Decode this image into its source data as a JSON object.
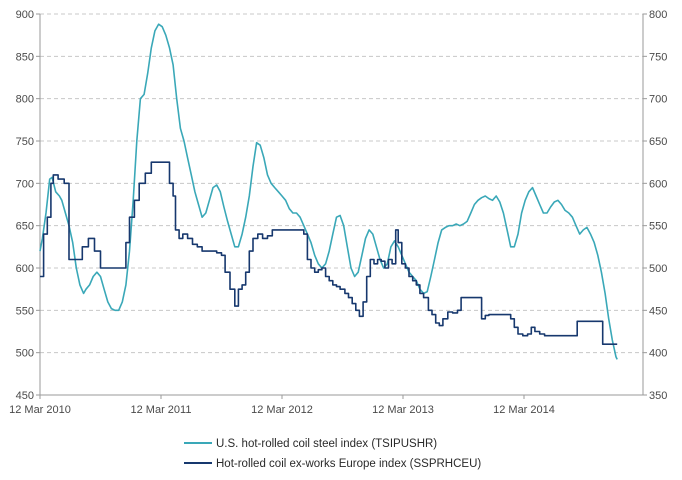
{
  "chart_data": {
    "type": "line",
    "title": "",
    "xlabel": "",
    "ylabel": "",
    "grid": true,
    "legend_position": "bottom",
    "x_range": [
      0,
      5.0
    ],
    "x_tick_values": [
      0,
      1,
      2,
      3,
      4
    ],
    "x_tick_labels": [
      "12 Mar 2010",
      "12 Mar 2011",
      "12 Mar 2012",
      "12 Mar 2013",
      "12 Mar 2014"
    ],
    "left_axis": {
      "ylim": [
        450,
        900
      ],
      "ticks": [
        450,
        500,
        550,
        600,
        650,
        700,
        750,
        800,
        850,
        900
      ]
    },
    "right_axis": {
      "ylim": [
        350,
        800
      ],
      "ticks": [
        350,
        400,
        450,
        500,
        550,
        600,
        650,
        700,
        750,
        800
      ]
    },
    "series": [
      {
        "name": "U.S. hot-rolled coil steel index (TSIPUSHR)",
        "axis": "left",
        "color": "#3aa8b8",
        "step": false,
        "points": [
          [
            0.0,
            620
          ],
          [
            0.02,
            635
          ],
          [
            0.05,
            665
          ],
          [
            0.08,
            705
          ],
          [
            0.1,
            707
          ],
          [
            0.13,
            690
          ],
          [
            0.16,
            685
          ],
          [
            0.18,
            680
          ],
          [
            0.21,
            665
          ],
          [
            0.24,
            650
          ],
          [
            0.27,
            630
          ],
          [
            0.3,
            600
          ],
          [
            0.33,
            580
          ],
          [
            0.36,
            570
          ],
          [
            0.38,
            575
          ],
          [
            0.41,
            580
          ],
          [
            0.44,
            590
          ],
          [
            0.47,
            595
          ],
          [
            0.5,
            590
          ],
          [
            0.53,
            575
          ],
          [
            0.56,
            560
          ],
          [
            0.59,
            552
          ],
          [
            0.62,
            550
          ],
          [
            0.65,
            550
          ],
          [
            0.68,
            560
          ],
          [
            0.71,
            580
          ],
          [
            0.74,
            620
          ],
          [
            0.77,
            680
          ],
          [
            0.8,
            750
          ],
          [
            0.83,
            800
          ],
          [
            0.86,
            805
          ],
          [
            0.89,
            830
          ],
          [
            0.92,
            860
          ],
          [
            0.95,
            880
          ],
          [
            0.98,
            888
          ],
          [
            1.01,
            885
          ],
          [
            1.04,
            875
          ],
          [
            1.07,
            860
          ],
          [
            1.1,
            840
          ],
          [
            1.13,
            800
          ],
          [
            1.16,
            765
          ],
          [
            1.19,
            750
          ],
          [
            1.22,
            730
          ],
          [
            1.25,
            710
          ],
          [
            1.28,
            690
          ],
          [
            1.31,
            675
          ],
          [
            1.34,
            660
          ],
          [
            1.37,
            665
          ],
          [
            1.4,
            680
          ],
          [
            1.43,
            695
          ],
          [
            1.46,
            698
          ],
          [
            1.49,
            690
          ],
          [
            1.52,
            672
          ],
          [
            1.55,
            655
          ],
          [
            1.58,
            640
          ],
          [
            1.61,
            625
          ],
          [
            1.64,
            625
          ],
          [
            1.67,
            640
          ],
          [
            1.7,
            660
          ],
          [
            1.73,
            685
          ],
          [
            1.76,
            720
          ],
          [
            1.79,
            748
          ],
          [
            1.82,
            745
          ],
          [
            1.85,
            730
          ],
          [
            1.88,
            710
          ],
          [
            1.91,
            700
          ],
          [
            1.94,
            695
          ],
          [
            1.97,
            690
          ],
          [
            2.0,
            685
          ],
          [
            2.03,
            680
          ],
          [
            2.06,
            670
          ],
          [
            2.09,
            665
          ],
          [
            2.12,
            665
          ],
          [
            2.15,
            660
          ],
          [
            2.18,
            650
          ],
          [
            2.21,
            640
          ],
          [
            2.24,
            630
          ],
          [
            2.27,
            615
          ],
          [
            2.3,
            605
          ],
          [
            2.33,
            600
          ],
          [
            2.36,
            605
          ],
          [
            2.39,
            620
          ],
          [
            2.42,
            640
          ],
          [
            2.45,
            660
          ],
          [
            2.48,
            662
          ],
          [
            2.51,
            650
          ],
          [
            2.54,
            625
          ],
          [
            2.57,
            600
          ],
          [
            2.6,
            590
          ],
          [
            2.63,
            595
          ],
          [
            2.66,
            615
          ],
          [
            2.69,
            635
          ],
          [
            2.72,
            645
          ],
          [
            2.75,
            640
          ],
          [
            2.78,
            625
          ],
          [
            2.81,
            610
          ],
          [
            2.84,
            600
          ],
          [
            2.87,
            605
          ],
          [
            2.9,
            625
          ],
          [
            2.93,
            632
          ],
          [
            2.96,
            625
          ],
          [
            2.99,
            615
          ],
          [
            3.02,
            605
          ],
          [
            3.05,
            595
          ],
          [
            3.08,
            590
          ],
          [
            3.11,
            585
          ],
          [
            3.14,
            575
          ],
          [
            3.17,
            570
          ],
          [
            3.2,
            572
          ],
          [
            3.23,
            590
          ],
          [
            3.26,
            610
          ],
          [
            3.29,
            630
          ],
          [
            3.32,
            645
          ],
          [
            3.35,
            648
          ],
          [
            3.38,
            650
          ],
          [
            3.41,
            650
          ],
          [
            3.44,
            652
          ],
          [
            3.47,
            650
          ],
          [
            3.5,
            652
          ],
          [
            3.53,
            655
          ],
          [
            3.56,
            665
          ],
          [
            3.59,
            675
          ],
          [
            3.62,
            680
          ],
          [
            3.65,
            683
          ],
          [
            3.68,
            685
          ],
          [
            3.71,
            682
          ],
          [
            3.74,
            680
          ],
          [
            3.77,
            685
          ],
          [
            3.8,
            678
          ],
          [
            3.83,
            665
          ],
          [
            3.86,
            645
          ],
          [
            3.89,
            625
          ],
          [
            3.92,
            625
          ],
          [
            3.95,
            640
          ],
          [
            3.98,
            665
          ],
          [
            4.01,
            680
          ],
          [
            4.04,
            690
          ],
          [
            4.07,
            695
          ],
          [
            4.1,
            685
          ],
          [
            4.13,
            675
          ],
          [
            4.16,
            665
          ],
          [
            4.19,
            665
          ],
          [
            4.22,
            672
          ],
          [
            4.25,
            678
          ],
          [
            4.28,
            680
          ],
          [
            4.31,
            675
          ],
          [
            4.34,
            668
          ],
          [
            4.37,
            665
          ],
          [
            4.4,
            660
          ],
          [
            4.43,
            650
          ],
          [
            4.46,
            640
          ],
          [
            4.49,
            645
          ],
          [
            4.52,
            648
          ],
          [
            4.55,
            640
          ],
          [
            4.58,
            630
          ],
          [
            4.61,
            615
          ],
          [
            4.64,
            595
          ],
          [
            4.67,
            570
          ],
          [
            4.7,
            540
          ],
          [
            4.73,
            515
          ],
          [
            4.76,
            495
          ],
          [
            4.77,
            492
          ]
        ]
      },
      {
        "name": "Hot-rolled coil ex-works Europe index (SSPRHCEU)",
        "axis": "right",
        "color": "#17386e",
        "step": true,
        "points": [
          [
            0.0,
            490
          ],
          [
            0.03,
            540
          ],
          [
            0.06,
            560
          ],
          [
            0.09,
            600
          ],
          [
            0.11,
            610
          ],
          [
            0.15,
            605
          ],
          [
            0.2,
            600
          ],
          [
            0.24,
            510
          ],
          [
            0.3,
            510
          ],
          [
            0.35,
            525
          ],
          [
            0.4,
            535
          ],
          [
            0.45,
            520
          ],
          [
            0.5,
            500
          ],
          [
            0.55,
            500
          ],
          [
            0.6,
            500
          ],
          [
            0.64,
            500
          ],
          [
            0.68,
            500
          ],
          [
            0.71,
            530
          ],
          [
            0.74,
            560
          ],
          [
            0.78,
            580
          ],
          [
            0.82,
            600
          ],
          [
            0.87,
            612
          ],
          [
            0.92,
            625
          ],
          [
            1.0,
            625
          ],
          [
            1.04,
            625
          ],
          [
            1.07,
            600
          ],
          [
            1.1,
            585
          ],
          [
            1.12,
            545
          ],
          [
            1.15,
            535
          ],
          [
            1.18,
            540
          ],
          [
            1.22,
            535
          ],
          [
            1.26,
            528
          ],
          [
            1.3,
            525
          ],
          [
            1.34,
            520
          ],
          [
            1.38,
            520
          ],
          [
            1.42,
            520
          ],
          [
            1.46,
            518
          ],
          [
            1.5,
            515
          ],
          [
            1.53,
            495
          ],
          [
            1.57,
            475
          ],
          [
            1.61,
            455
          ],
          [
            1.64,
            475
          ],
          [
            1.67,
            480
          ],
          [
            1.7,
            495
          ],
          [
            1.73,
            520
          ],
          [
            1.76,
            535
          ],
          [
            1.8,
            540
          ],
          [
            1.84,
            535
          ],
          [
            1.88,
            538
          ],
          [
            1.92,
            545
          ],
          [
            1.96,
            545
          ],
          [
            2.0,
            545
          ],
          [
            2.05,
            545
          ],
          [
            2.1,
            545
          ],
          [
            2.14,
            545
          ],
          [
            2.18,
            540
          ],
          [
            2.21,
            510
          ],
          [
            2.24,
            500
          ],
          [
            2.27,
            495
          ],
          [
            2.3,
            498
          ],
          [
            2.33,
            500
          ],
          [
            2.36,
            490
          ],
          [
            2.39,
            485
          ],
          [
            2.42,
            480
          ],
          [
            2.45,
            478
          ],
          [
            2.48,
            475
          ],
          [
            2.52,
            470
          ],
          [
            2.55,
            465
          ],
          [
            2.58,
            458
          ],
          [
            2.61,
            450
          ],
          [
            2.64,
            443
          ],
          [
            2.67,
            460
          ],
          [
            2.7,
            490
          ],
          [
            2.73,
            510
          ],
          [
            2.76,
            505
          ],
          [
            2.79,
            510
          ],
          [
            2.82,
            508
          ],
          [
            2.85,
            500
          ],
          [
            2.88,
            510
          ],
          [
            2.91,
            505
          ],
          [
            2.94,
            545
          ],
          [
            2.96,
            530
          ],
          [
            2.99,
            505
          ],
          [
            3.02,
            500
          ],
          [
            3.05,
            490
          ],
          [
            3.08,
            485
          ],
          [
            3.11,
            480
          ],
          [
            3.14,
            470
          ],
          [
            3.17,
            465
          ],
          [
            3.21,
            450
          ],
          [
            3.24,
            445
          ],
          [
            3.27,
            435
          ],
          [
            3.3,
            432
          ],
          [
            3.33,
            440
          ],
          [
            3.37,
            448
          ],
          [
            3.41,
            447
          ],
          [
            3.45,
            450
          ],
          [
            3.48,
            465
          ],
          [
            3.52,
            465
          ],
          [
            3.56,
            465
          ],
          [
            3.6,
            465
          ],
          [
            3.65,
            440
          ],
          [
            3.68,
            444
          ],
          [
            3.71,
            445
          ],
          [
            3.75,
            445
          ],
          [
            3.8,
            445
          ],
          [
            3.85,
            445
          ],
          [
            3.89,
            440
          ],
          [
            3.92,
            430
          ],
          [
            3.95,
            422
          ],
          [
            3.99,
            420
          ],
          [
            4.03,
            422
          ],
          [
            4.06,
            430
          ],
          [
            4.09,
            425
          ],
          [
            4.13,
            422
          ],
          [
            4.17,
            420
          ],
          [
            4.22,
            420
          ],
          [
            4.27,
            420
          ],
          [
            4.3,
            420
          ],
          [
            4.35,
            420
          ],
          [
            4.4,
            420
          ],
          [
            4.44,
            437
          ],
          [
            4.5,
            437
          ],
          [
            4.56,
            437
          ],
          [
            4.62,
            437
          ],
          [
            4.65,
            410
          ],
          [
            4.7,
            410
          ],
          [
            4.74,
            410
          ],
          [
            4.77,
            410
          ]
        ]
      }
    ]
  }
}
